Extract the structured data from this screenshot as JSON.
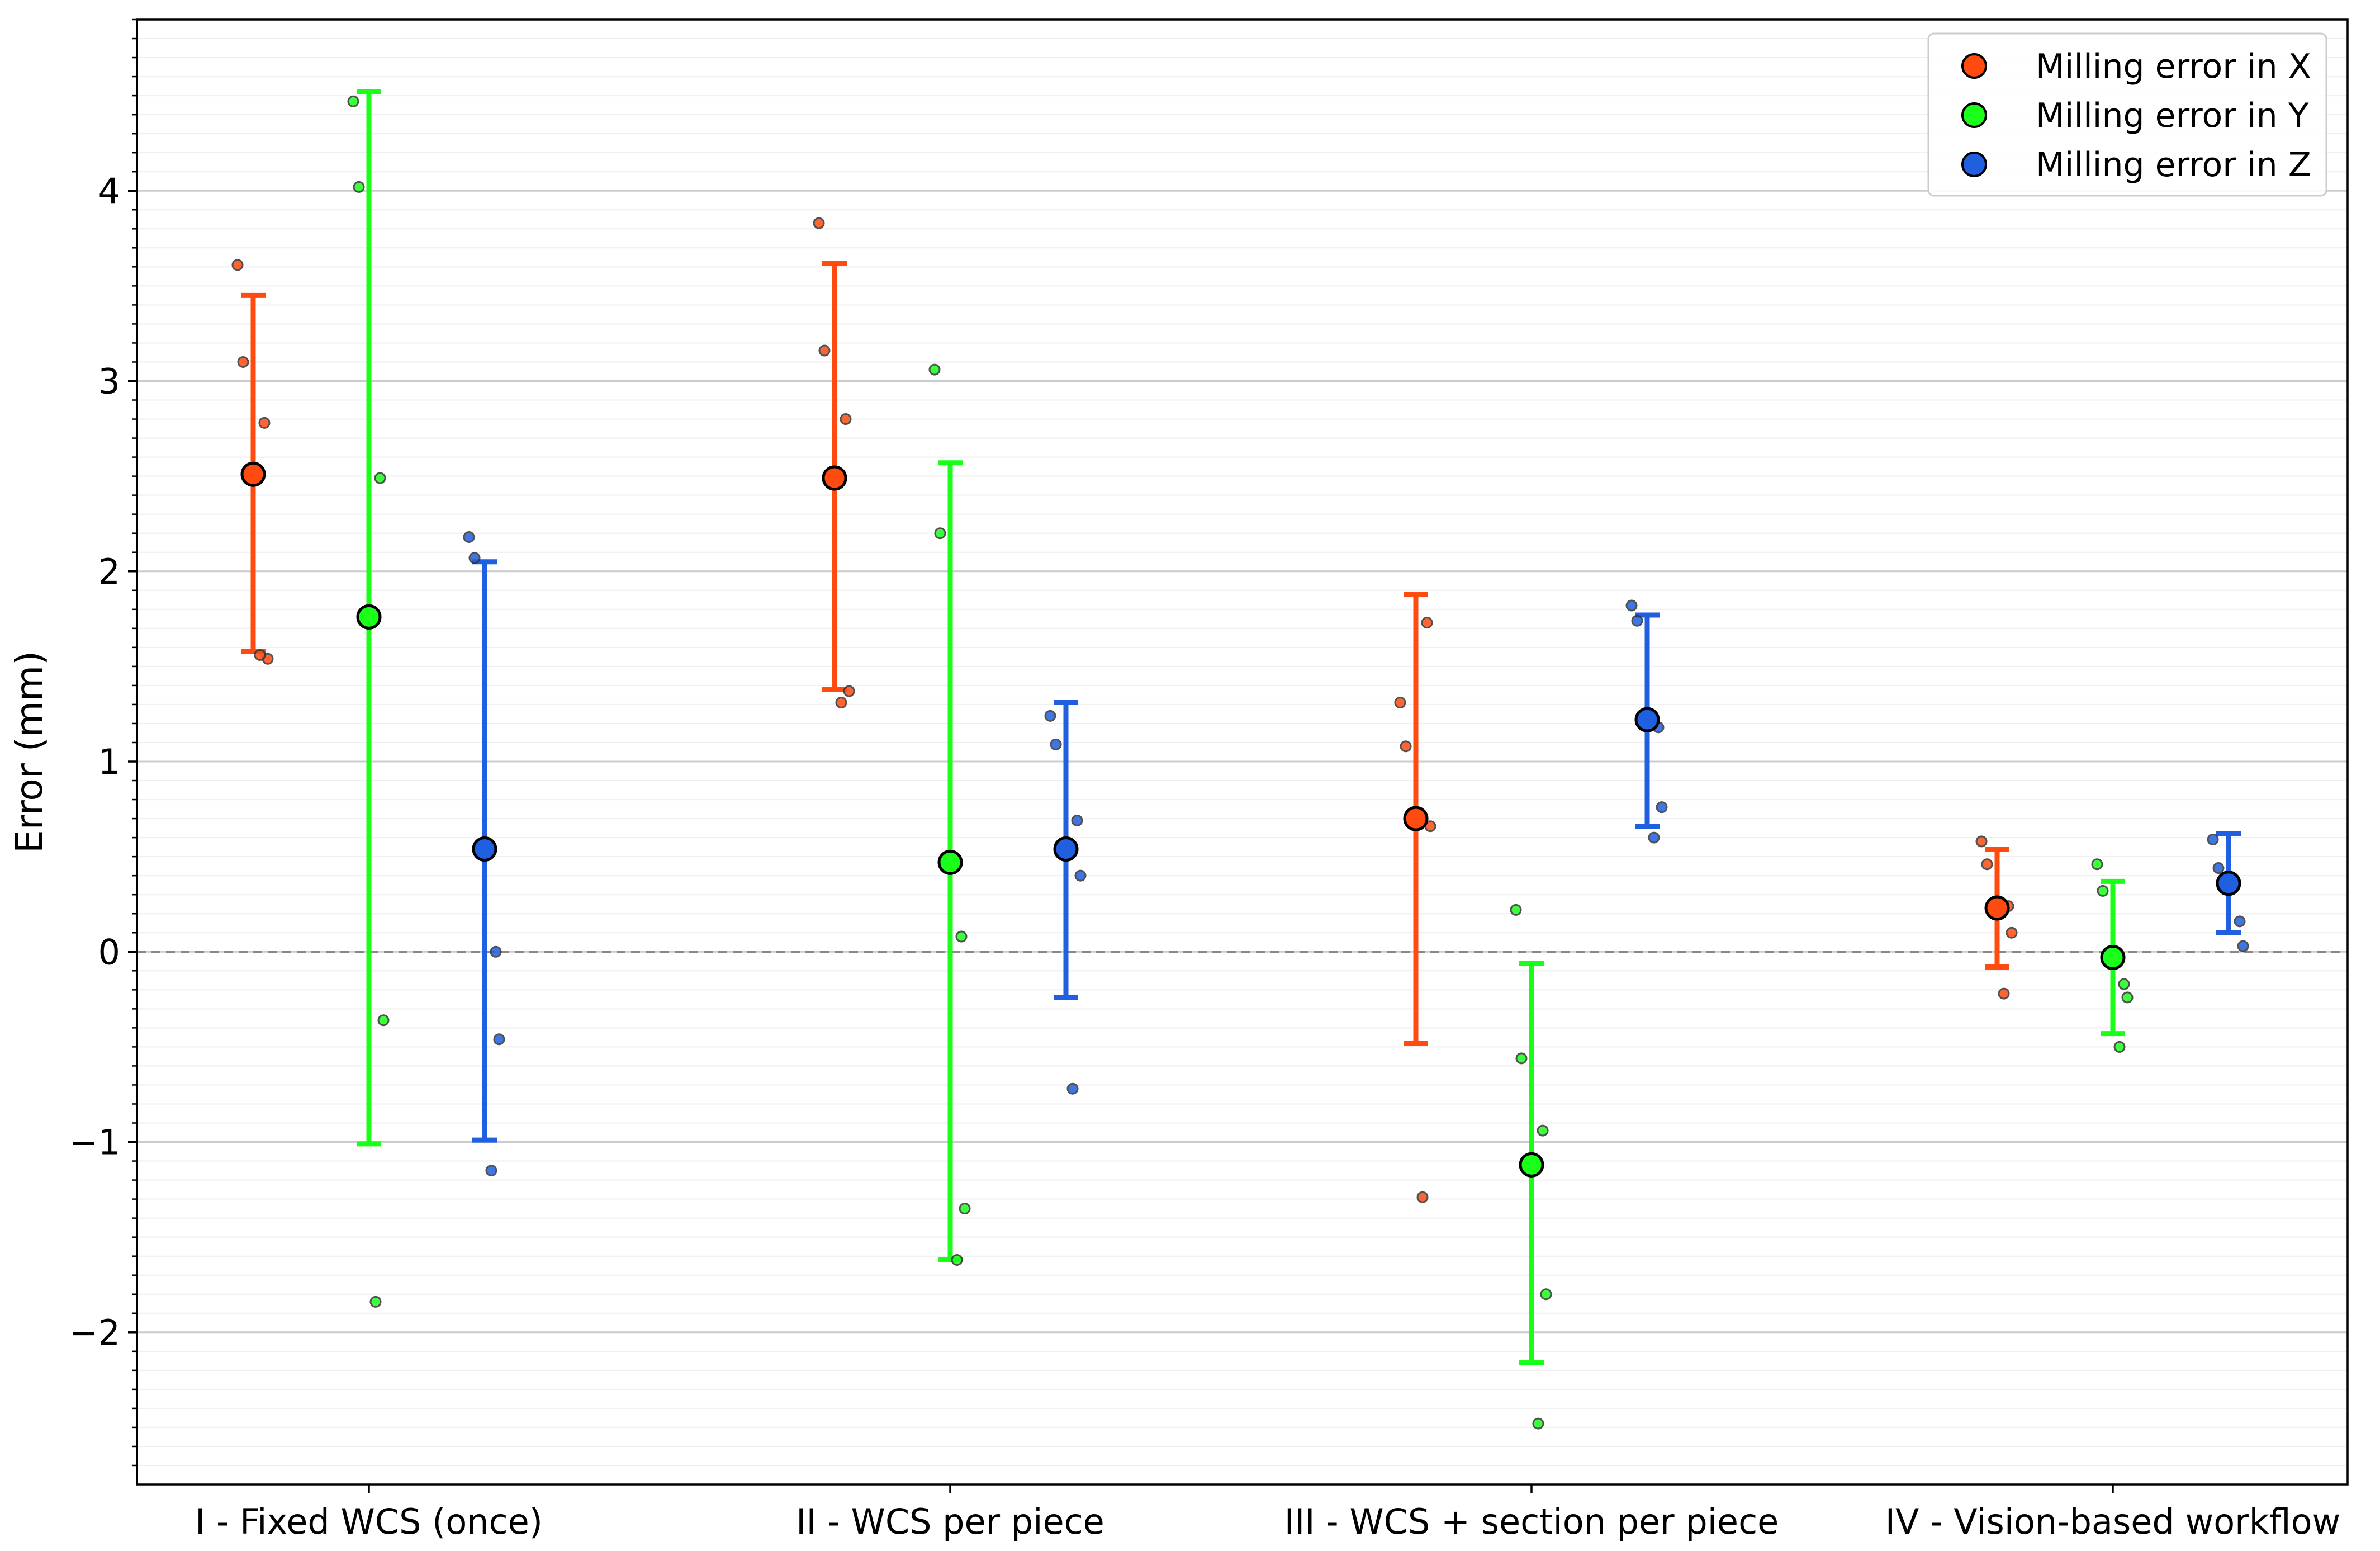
{
  "chart_data": {
    "type": "scatter",
    "ylabel": "Error (mm)",
    "xlabel": "",
    "title": "",
    "ylim": [
      -2.8,
      4.9
    ],
    "yticks": [
      -2,
      -1,
      0,
      1,
      2,
      3,
      4
    ],
    "ytick_labels": [
      "−2",
      "−1",
      "0",
      "1",
      "2",
      "3",
      "4"
    ],
    "minor_grid_step": 0.1,
    "grid": true,
    "zero_reference_line": 0,
    "legend_position": "top-right",
    "categories": [
      "I - Fixed WCS (once)",
      "II - WCS per piece",
      "III - WCS + section per piece",
      "IV - Vision-based workflow"
    ],
    "series": [
      {
        "name": "Milling error in X",
        "color": "#ff4b0f",
        "mean": [
          2.51,
          2.49,
          0.7,
          0.23
        ],
        "err_low": [
          1.58,
          1.38,
          -0.48,
          -0.08
        ],
        "err_high": [
          3.45,
          3.62,
          1.88,
          0.54
        ],
        "points": [
          [
            3.61,
            3.1,
            2.78,
            1.54,
            1.56
          ],
          [
            3.83,
            3.16,
            2.8,
            1.37,
            1.31
          ],
          [
            1.31,
            1.08,
            1.73,
            0.66,
            -1.29
          ],
          [
            0.58,
            0.46,
            0.24,
            0.1,
            -0.22
          ]
        ]
      },
      {
        "name": "Milling error in Y",
        "color": "#19ff19",
        "mean": [
          1.76,
          0.47,
          -1.12,
          -0.03
        ],
        "err_low": [
          -1.01,
          -1.62,
          -2.16,
          -0.43
        ],
        "err_high": [
          4.52,
          2.57,
          -0.06,
          0.37
        ],
        "points": [
          [
            4.47,
            4.02,
            2.49,
            -0.36,
            -1.84
          ],
          [
            3.06,
            2.2,
            0.08,
            -1.35,
            -1.62
          ],
          [
            0.22,
            -0.56,
            -0.94,
            -1.8,
            -2.48
          ],
          [
            0.46,
            0.32,
            -0.17,
            -0.24,
            -0.5
          ]
        ]
      },
      {
        "name": "Milling error in Z",
        "color": "#1f5fe0",
        "mean": [
          0.54,
          0.54,
          1.22,
          0.36
        ],
        "err_low": [
          -0.99,
          -0.24,
          0.66,
          0.1
        ],
        "err_high": [
          2.05,
          1.31,
          1.77,
          0.62
        ],
        "points": [
          [
            2.18,
            2.07,
            0.0,
            -0.46,
            -1.15
          ],
          [
            1.24,
            1.09,
            0.69,
            0.4,
            -0.72
          ],
          [
            1.82,
            1.74,
            1.18,
            0.76,
            0.6
          ],
          [
            0.59,
            0.44,
            0.16,
            0.03
          ]
        ]
      }
    ]
  }
}
